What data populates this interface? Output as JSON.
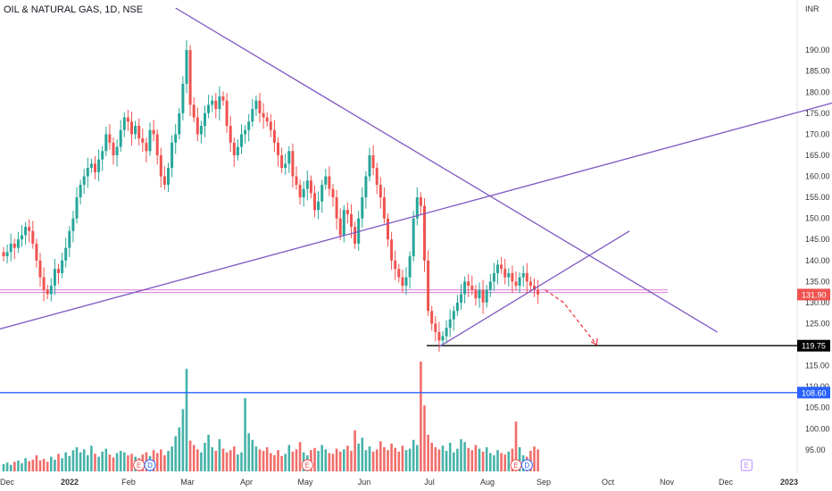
{
  "header": {
    "title": "OIL & NATURAL GAS, 1D, NSE"
  },
  "colors": {
    "up": "#26a69a",
    "down": "#ef5350",
    "trendline": "#7e57c2",
    "support_line": "#000000",
    "blue_line": "#2962ff",
    "pink_zone": "#d67bd6",
    "projection": "#f23645",
    "axis_text": "#333333",
    "price_badge": "#ef5350",
    "support_badge": "#000000",
    "blue_badge": "#2962ff"
  },
  "chart_data": {
    "type": "candlestick",
    "currency": "INR",
    "y_range": [
      92,
      200
    ],
    "y_ticks": [
      "95.00",
      "100.00",
      "105.00",
      "110.00",
      "115.00",
      "120.00",
      "125.00",
      "130.00",
      "135.00",
      "140.00",
      "145.00",
      "150.00",
      "155.00",
      "160.00",
      "165.00",
      "170.00",
      "175.00",
      "180.00",
      "185.00",
      "190.00"
    ],
    "x_labels": [
      "Dec",
      "2022",
      "Feb",
      "Mar",
      "Apr",
      "May",
      "Jun",
      "Jul",
      "Aug",
      "Sep",
      "Oct",
      "Nov",
      "Dec",
      "2023"
    ],
    "price_badges": [
      {
        "label": "131.90",
        "value": 131.9,
        "kind": "last"
      },
      {
        "label": "119.75",
        "value": 119.75,
        "kind": "support"
      },
      {
        "label": "108.60",
        "value": 108.6,
        "kind": "blue"
      }
    ],
    "horizontal_lines": [
      {
        "value": 119.75,
        "kind": "support"
      },
      {
        "value": 108.6,
        "kind": "blue"
      },
      {
        "value": 133.0,
        "kind": "pink"
      },
      {
        "value": 132.4,
        "kind": "pink"
      }
    ],
    "closes": [
      141,
      142,
      144,
      143,
      145,
      146,
      148,
      147,
      144,
      140,
      136,
      133,
      132,
      134,
      138,
      137,
      140,
      143,
      147,
      150,
      155,
      158,
      160,
      162,
      163,
      161,
      164,
      166,
      170,
      168,
      165,
      167,
      171,
      174,
      173,
      170,
      172,
      169,
      168,
      166,
      171,
      170,
      165,
      160,
      158,
      162,
      168,
      170,
      175,
      182,
      190,
      177,
      174,
      170,
      172,
      175,
      177,
      178,
      176,
      179,
      178,
      172,
      168,
      165,
      167,
      170,
      171,
      173,
      176,
      178,
      175,
      174,
      173,
      171,
      168,
      165,
      162,
      163,
      166,
      160,
      158,
      155,
      157,
      159,
      156,
      152,
      154,
      158,
      160,
      157,
      155,
      150,
      146,
      152,
      151,
      148,
      144,
      150,
      155,
      160,
      165,
      162,
      158,
      155,
      150,
      145,
      140,
      138,
      136,
      134,
      136,
      141,
      150,
      155,
      153,
      140,
      128,
      125,
      123,
      121,
      122,
      124,
      126,
      128,
      130,
      132,
      135,
      134,
      133,
      131,
      133,
      130,
      133,
      135,
      137,
      139,
      138,
      136,
      137,
      135,
      134,
      136,
      137,
      135,
      134,
      133,
      131.9
    ],
    "volumes": [
      1.0,
      1.2,
      0.9,
      1.3,
      1.5,
      1.1,
      1.8,
      1.4,
      1.6,
      2.2,
      1.5,
      1.7,
      1.3,
      2.0,
      1.6,
      2.4,
      1.8,
      2.6,
      2.1,
      2.9,
      3.3,
      2.6,
      3.0,
      2.2,
      3.5,
      2.4,
      2.0,
      2.7,
      3.1,
      2.3,
      1.9,
      2.5,
      2.8,
      2.6,
      2.2,
      2.4,
      2.0,
      1.8,
      2.3,
      2.6,
      2.1,
      2.9,
      2.5,
      3.0,
      2.2,
      2.8,
      3.4,
      4.8,
      6.0,
      8.5,
      14.0,
      4.2,
      3.6,
      3.0,
      2.6,
      3.9,
      5.0,
      3.3,
      2.8,
      4.4,
      3.1,
      2.6,
      2.9,
      3.4,
      2.3,
      2.6,
      10.0,
      5.2,
      4.3,
      3.4,
      3.0,
      2.8,
      3.3,
      2.5,
      2.2,
      2.9,
      2.1,
      2.4,
      3.6,
      2.7,
      3.0,
      4.0,
      2.6,
      2.2,
      2.9,
      3.2,
      2.8,
      3.6,
      3.0,
      2.5,
      2.4,
      3.1,
      2.7,
      3.0,
      3.5,
      2.8,
      5.6,
      3.8,
      4.6,
      2.9,
      3.4,
      2.7,
      3.0,
      4.1,
      3.3,
      2.9,
      3.8,
      3.2,
      2.7,
      3.5,
      2.9,
      3.1,
      4.3,
      3.6,
      15.0,
      9.0,
      5.0,
      3.9,
      3.3,
      3.0,
      3.5,
      2.8,
      3.9,
      2.6,
      3.1,
      4.4,
      4.0,
      3.2,
      2.9,
      3.6,
      3.1,
      2.7,
      3.3,
      2.5,
      2.2,
      2.9,
      2.5,
      2.3,
      2.7,
      3.1,
      6.8,
      3.3,
      2.2,
      2.0,
      2.8,
      3.4,
      3.0
    ],
    "event_markers": [
      {
        "label": "E",
        "index": 37,
        "kind": "earnings"
      },
      {
        "label": "D",
        "index": 40,
        "kind": "dividend"
      },
      {
        "label": "E",
        "index": 83,
        "kind": "earnings"
      },
      {
        "label": "E",
        "index": 140,
        "kind": "earnings"
      },
      {
        "label": "D",
        "index": 143,
        "kind": "dividend"
      },
      {
        "label": "E",
        "index": 203,
        "kind": "earnings-future"
      }
    ],
    "trendlines": [
      {
        "from": [
          -2,
          123.5
        ],
        "to": [
          250,
          183
        ],
        "label": "rising resistance"
      },
      {
        "from": [
          47,
          200
        ],
        "to": [
          195,
          123
        ],
        "label": "falling resistance"
      },
      {
        "from": [
          119,
          119.5
        ],
        "to": [
          171,
          147
        ],
        "label": "rising support"
      }
    ],
    "projection": {
      "from": [
        148,
        133
      ],
      "via": [
        153,
        130
      ],
      "to": [
        162,
        120
      ]
    }
  }
}
